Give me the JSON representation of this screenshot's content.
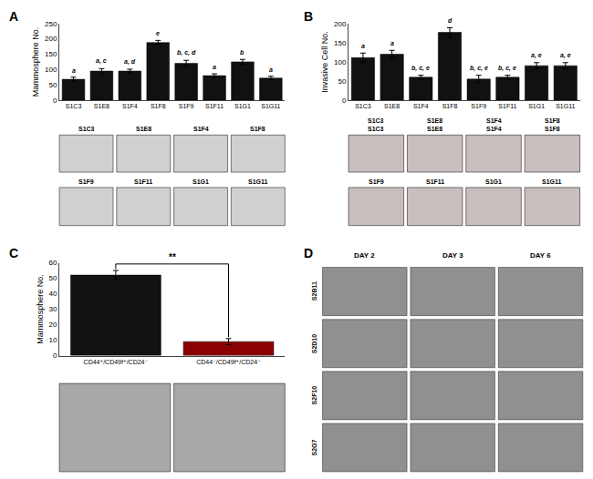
{
  "chart_data": [
    {
      "type": "bar",
      "title": "A",
      "categories": [
        "S1C3",
        "S1E8",
        "S1F4",
        "S1F8",
        "S1F9",
        "S1F11",
        "S1G1",
        "S1G11"
      ],
      "values": [
        68,
        95,
        95,
        188,
        120,
        80,
        125,
        72
      ],
      "errors": [
        7,
        8,
        6,
        7,
        10,
        6,
        8,
        6
      ],
      "annotations": [
        {
          "text": "a",
          "category": "S1C3"
        },
        {
          "text": "a, c",
          "category": "S1E8"
        },
        {
          "text": "a, d",
          "category": "S1F4"
        },
        {
          "text": "e",
          "category": "S1F8"
        },
        {
          "text": "b, c, d",
          "category": "S1F9"
        },
        {
          "text": "a",
          "category": "S1F11"
        },
        {
          "text": "b",
          "category": "S1G1"
        },
        {
          "text": "a",
          "category": "S1G11"
        }
      ],
      "y_label": "Mammosphere No.",
      "ylim": [
        0,
        250
      ],
      "yticks": [
        0,
        50,
        100,
        150,
        200,
        250
      ],
      "color": "#111111",
      "grid": false,
      "images": {
        "color": "#d0d0d0",
        "rows": [
          [
            "S1C3",
            "S1E8",
            "S1F4",
            "S1F8"
          ],
          [
            "S1F9",
            "S1F11",
            "S1G1",
            "S1G11"
          ]
        ]
      }
    },
    {
      "type": "bar",
      "title": "B",
      "categories": [
        "S1C3",
        "S1E8",
        "S1F4",
        "S1F8",
        "S1F9",
        "S1F11",
        "S1G1",
        "S1G11"
      ],
      "values": [
        111,
        120,
        60,
        177,
        55,
        60,
        90,
        90
      ],
      "errors": [
        12,
        10,
        5,
        12,
        10,
        5,
        8,
        8
      ],
      "annotations": [
        {
          "text": "a",
          "category": "S1C3"
        },
        {
          "text": "a",
          "category": "S1E8"
        },
        {
          "text": "b, c, e",
          "category": "S1F4"
        },
        {
          "text": "d",
          "category": "S1F8"
        },
        {
          "text": "b, c, e",
          "category": "S1F9"
        },
        {
          "text": "b, c, e",
          "category": "S1F11"
        },
        {
          "text": "a, e",
          "category": "S1G1"
        },
        {
          "text": "a, e",
          "category": "S1G11"
        }
      ],
      "y_label": "Invasive Cell No.",
      "ylim": [
        0,
        200
      ],
      "yticks": [
        0,
        50,
        100,
        150,
        200
      ],
      "color": "#111111",
      "grid": false,
      "images": {
        "color": "#c8bebe",
        "rows": [
          [
            "S1C3\nS1C3",
            "S1E8\nS1E8",
            "S1F4\nS1F4",
            "S1F8\nS1F8"
          ],
          [
            "S1F9",
            "S1F11",
            "S1G1",
            "S1G11"
          ]
        ]
      }
    },
    {
      "type": "bar",
      "title": "C",
      "categories": [
        "CD44⁺/CD49f⁺/CD24⁻",
        "CD44⁻/CD49f⁺/CD24⁻"
      ],
      "values": [
        52,
        9
      ],
      "errors": [
        3,
        2
      ],
      "colors": [
        "#111111",
        "#8B0000"
      ],
      "annotations": [
        {
          "text": "**",
          "between": [
            "CD44⁺/CD49f⁺/CD24⁻",
            "CD44⁻/CD49f⁺/CD24⁻"
          ]
        }
      ],
      "y_label": "Mammosphere No.",
      "ylim": [
        0,
        60
      ],
      "yticks": [
        0,
        10,
        20,
        30,
        40,
        50,
        60
      ],
      "grid": false,
      "images": {
        "color": "#a8a8a8",
        "rows": [
          [
            null,
            null
          ]
        ]
      }
    },
    {
      "type": "image_grid",
      "title": "D",
      "col_labels": [
        "DAY 2",
        "DAY 3",
        "DAY 6"
      ],
      "row_labels": [
        "S2B11",
        "S2D10",
        "S2F10",
        "S2G7"
      ],
      "color": "#909090"
    }
  ]
}
